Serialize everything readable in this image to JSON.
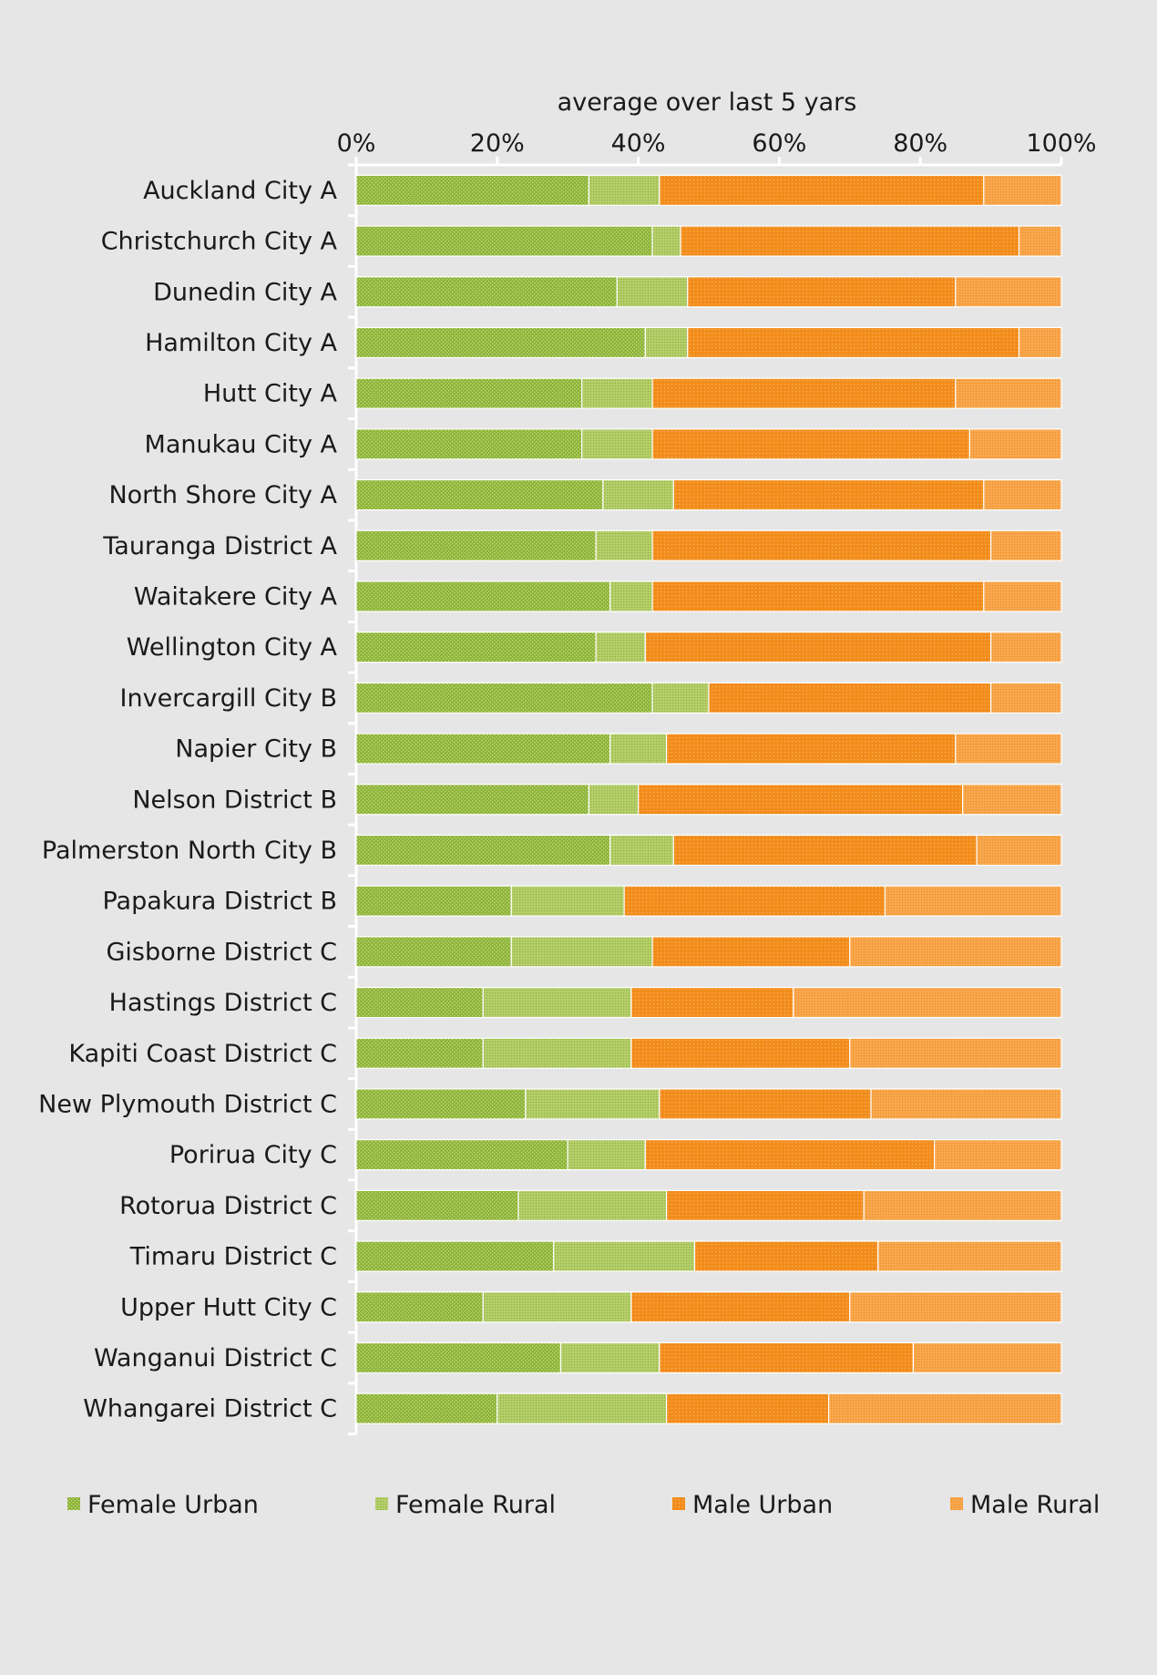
{
  "chart_data": {
    "type": "bar",
    "orientation": "horizontal",
    "stacked": "percent",
    "axis_title": "average over last 5 yars",
    "xlabel": "",
    "ylabel": "",
    "xlim": [
      0,
      100
    ],
    "x_ticks": [
      "0%",
      "20%",
      "40%",
      "60%",
      "80%",
      "100%"
    ],
    "x_tick_values": [
      0,
      20,
      40,
      60,
      80,
      100
    ],
    "axis_position": "top",
    "grid": false,
    "legend_position": "bottom",
    "categories": [
      "Auckland City A",
      "Christchurch City A",
      "Dunedin City A",
      "Hamilton City A",
      "Hutt City A",
      "Manukau City A",
      "North Shore City A",
      "Tauranga District A",
      "Waitakere City A",
      "Wellington City A",
      "Invercargill City B",
      "Napier City B",
      "Nelson District B",
      "Palmerston North City B",
      "Papakura District B",
      "Gisborne District C",
      "Hastings District C",
      "Kapiti Coast District C",
      "New Plymouth District C",
      "Porirua City C",
      "Rotorua District C",
      "Timaru District C",
      "Upper Hutt City C",
      "Wanganui District C",
      "Whangarei District C"
    ],
    "series": [
      {
        "name": "Female Urban",
        "color": "#8db33a",
        "values": [
          33,
          42,
          37,
          41,
          32,
          32,
          35,
          34,
          36,
          34,
          42,
          36,
          33,
          36,
          22,
          22,
          18,
          18,
          24,
          30,
          23,
          28,
          18,
          29,
          20
        ]
      },
      {
        "name": "Female Rural",
        "color": "#b5cf6b",
        "values": [
          10,
          4,
          10,
          6,
          10,
          10,
          10,
          8,
          6,
          7,
          8,
          8,
          7,
          9,
          16,
          20,
          21,
          21,
          19,
          11,
          21,
          20,
          21,
          14,
          24
        ]
      },
      {
        "name": "Male Urban",
        "color": "#f28c1a",
        "values": [
          46,
          48,
          38,
          47,
          43,
          45,
          44,
          48,
          47,
          49,
          40,
          41,
          46,
          43,
          37,
          28,
          23,
          31,
          30,
          41,
          28,
          26,
          31,
          36,
          23
        ]
      },
      {
        "name": "Male Rural",
        "color": "#f7a850",
        "values": [
          11,
          6,
          15,
          6,
          15,
          13,
          11,
          10,
          11,
          10,
          10,
          15,
          14,
          12,
          25,
          30,
          38,
          30,
          27,
          18,
          28,
          26,
          30,
          21,
          33
        ]
      }
    ]
  }
}
